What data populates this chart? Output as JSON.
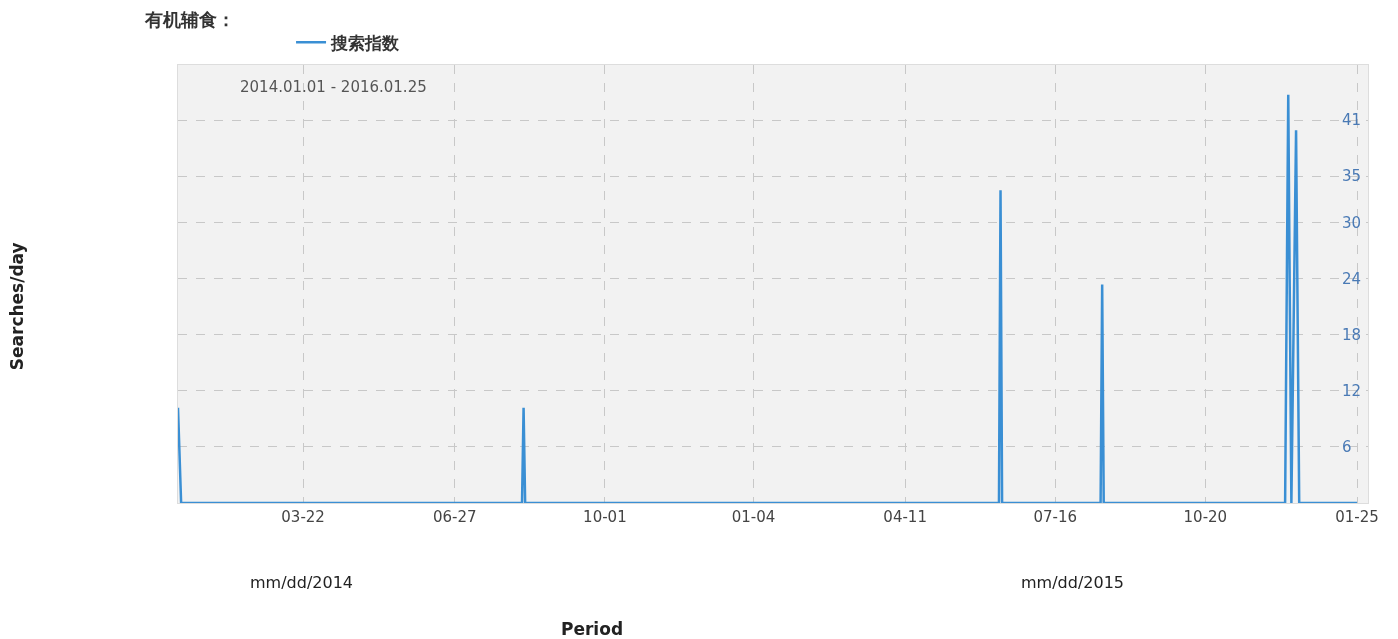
{
  "chart_data": {
    "type": "line",
    "title": "有机辅食：",
    "annotations": [
      "2014.01.01 - 2016.01.25",
      "mm/dd/2014",
      "mm/dd/2015",
      "Period",
      "Searches/day"
    ],
    "x": [
      "2014-01-01",
      "2014-01-03",
      "2014-08-09",
      "2014-08-10",
      "2014-08-11",
      "2015-06-10",
      "2015-06-11",
      "2015-06-12",
      "2015-08-14",
      "2015-08-15",
      "2015-08-16",
      "2015-12-10",
      "2015-12-12",
      "2015-12-14",
      "2015-12-17",
      "2015-12-19",
      "2016-01-25"
    ],
    "series": [
      {
        "name": "搜索指数",
        "color": "#3a8fd4",
        "values": [
          10.2,
          0,
          0,
          10.2,
          0,
          0,
          33.5,
          0,
          0,
          23.4,
          0,
          0,
          43.7,
          0,
          39.9,
          0,
          0
        ]
      }
    ],
    "xlim": [
      "2014-01-01",
      "2016-02-01"
    ],
    "xticks": [
      {
        "value": "2014-03-22",
        "label": "03-22"
      },
      {
        "value": "2014-06-27",
        "label": "06-27"
      },
      {
        "value": "2014-10-01",
        "label": "10-01"
      },
      {
        "value": "2015-01-04",
        "label": "01-04"
      },
      {
        "value": "2015-04-11",
        "label": "04-11"
      },
      {
        "value": "2015-07-16",
        "label": "07-16"
      },
      {
        "value": "2015-10-20",
        "label": "10-20"
      },
      {
        "value": "2016-01-25",
        "label": "01-25"
      }
    ],
    "ylim": [
      0,
      46.9
    ],
    "yticks": [
      6,
      12,
      18,
      24,
      30,
      35,
      41
    ],
    "grid": true,
    "legend": "top left",
    "marker": "none",
    "line_style": "solid"
  }
}
